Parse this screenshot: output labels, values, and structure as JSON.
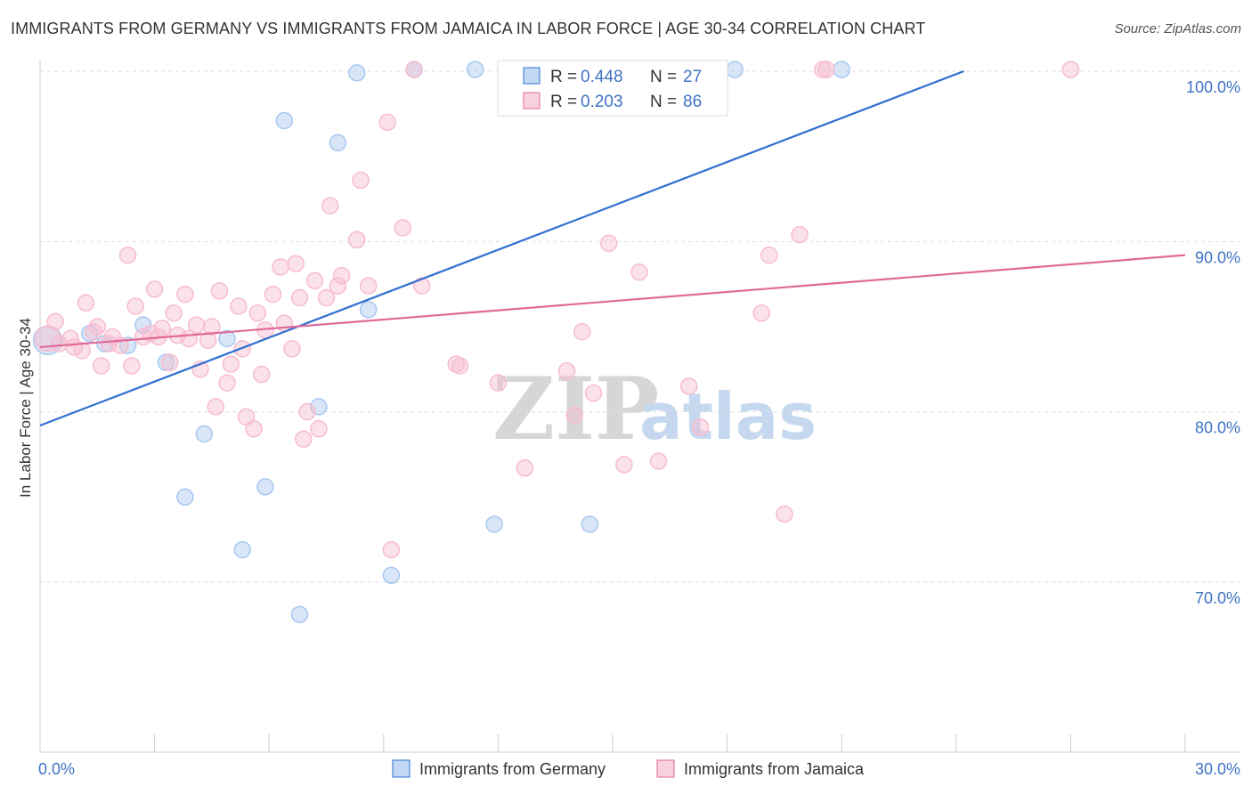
{
  "title": "IMMIGRANTS FROM GERMANY VS IMMIGRANTS FROM JAMAICA IN LABOR FORCE | AGE 30-34 CORRELATION CHART",
  "source": "Source: ZipAtlas.com",
  "watermark": {
    "zip": "ZIP",
    "atlas": "atlas"
  },
  "chart_data": {
    "type": "scatter",
    "title": "IMMIGRANTS FROM GERMANY VS IMMIGRANTS FROM JAMAICA IN LABOR FORCE | AGE 30-34 CORRELATION CHART",
    "xlabel": "",
    "ylabel": "In Labor Force | Age 30-34",
    "xlim": [
      0,
      30
    ],
    "ylim": [
      60,
      101
    ],
    "x_tick_labels": [
      "0.0%",
      "30.0%"
    ],
    "y_ticks": [
      70,
      80,
      90,
      100
    ],
    "y_tick_labels": [
      "70.0%",
      "80.0%",
      "90.0%",
      "100.0%"
    ],
    "grid": true,
    "legend_position": "top-center",
    "series": [
      {
        "name": "Immigrants from Germany",
        "color": "#a8c8f0",
        "line_color": "#2f6fcf",
        "r_label": "R =",
        "r_value": "0.448",
        "n_label": "N =",
        "n_value": "27",
        "trend": {
          "x": [
            0,
            24.2
          ],
          "y": [
            79.2,
            100.0
          ]
        },
        "points": [
          {
            "x": 0.2,
            "y": 84.2,
            "s": 16
          },
          {
            "x": 1.3,
            "y": 84.6,
            "s": 9
          },
          {
            "x": 1.7,
            "y": 84.0,
            "s": 9
          },
          {
            "x": 2.3,
            "y": 83.9,
            "s": 9
          },
          {
            "x": 2.7,
            "y": 85.1,
            "s": 9
          },
          {
            "x": 3.3,
            "y": 82.9,
            "s": 9
          },
          {
            "x": 3.8,
            "y": 75.0,
            "s": 9
          },
          {
            "x": 4.3,
            "y": 78.7,
            "s": 9
          },
          {
            "x": 4.9,
            "y": 84.3,
            "s": 9
          },
          {
            "x": 5.3,
            "y": 71.9,
            "s": 9
          },
          {
            "x": 5.9,
            "y": 75.6,
            "s": 9
          },
          {
            "x": 6.4,
            "y": 97.1,
            "s": 9
          },
          {
            "x": 6.8,
            "y": 68.1,
            "s": 9
          },
          {
            "x": 7.3,
            "y": 80.3,
            "s": 9
          },
          {
            "x": 7.8,
            "y": 95.8,
            "s": 9
          },
          {
            "x": 8.3,
            "y": 99.9,
            "s": 9
          },
          {
            "x": 8.6,
            "y": 86.0,
            "s": 9
          },
          {
            "x": 9.2,
            "y": 70.4,
            "s": 9
          },
          {
            "x": 9.8,
            "y": 100.1,
            "s": 9
          },
          {
            "x": 11.4,
            "y": 100.1,
            "s": 9
          },
          {
            "x": 11.9,
            "y": 73.4,
            "s": 9
          },
          {
            "x": 14.4,
            "y": 73.4,
            "s": 9
          },
          {
            "x": 15.8,
            "y": 100.1,
            "s": 9
          },
          {
            "x": 16.4,
            "y": 100.1,
            "s": 9
          },
          {
            "x": 18.2,
            "y": 100.1,
            "s": 9
          },
          {
            "x": 21.0,
            "y": 100.1,
            "s": 9
          }
        ]
      },
      {
        "name": "Immigrants from Jamaica",
        "color": "#f7bcd0",
        "line_color": "#e0699a",
        "r_label": "R =",
        "r_value": "0.203",
        "n_label": "N =",
        "n_value": "86",
        "trend": {
          "x": [
            0,
            30
          ],
          "y": [
            83.8,
            89.2
          ]
        },
        "points": [
          {
            "x": 0.2,
            "y": 84.3,
            "s": 14
          },
          {
            "x": 0.4,
            "y": 85.3,
            "s": 9
          },
          {
            "x": 0.5,
            "y": 84.0,
            "s": 9
          },
          {
            "x": 0.8,
            "y": 84.3,
            "s": 9
          },
          {
            "x": 0.9,
            "y": 83.8,
            "s": 9
          },
          {
            "x": 1.1,
            "y": 83.6,
            "s": 9
          },
          {
            "x": 1.2,
            "y": 86.4,
            "s": 9
          },
          {
            "x": 1.4,
            "y": 84.7,
            "s": 9
          },
          {
            "x": 1.5,
            "y": 85.0,
            "s": 9
          },
          {
            "x": 1.6,
            "y": 82.7,
            "s": 9
          },
          {
            "x": 1.8,
            "y": 84.0,
            "s": 9
          },
          {
            "x": 1.9,
            "y": 84.4,
            "s": 9
          },
          {
            "x": 2.1,
            "y": 83.9,
            "s": 9
          },
          {
            "x": 2.3,
            "y": 89.2,
            "s": 9
          },
          {
            "x": 2.4,
            "y": 82.7,
            "s": 9
          },
          {
            "x": 2.5,
            "y": 86.2,
            "s": 9
          },
          {
            "x": 2.7,
            "y": 84.4,
            "s": 9
          },
          {
            "x": 2.9,
            "y": 84.6,
            "s": 9
          },
          {
            "x": 3.0,
            "y": 87.2,
            "s": 9
          },
          {
            "x": 3.1,
            "y": 84.4,
            "s": 9
          },
          {
            "x": 3.2,
            "y": 84.9,
            "s": 9
          },
          {
            "x": 3.4,
            "y": 82.9,
            "s": 9
          },
          {
            "x": 3.5,
            "y": 85.8,
            "s": 9
          },
          {
            "x": 3.6,
            "y": 84.5,
            "s": 9
          },
          {
            "x": 3.8,
            "y": 86.9,
            "s": 9
          },
          {
            "x": 3.9,
            "y": 84.3,
            "s": 9
          },
          {
            "x": 4.1,
            "y": 85.1,
            "s": 9
          },
          {
            "x": 4.2,
            "y": 82.5,
            "s": 9
          },
          {
            "x": 4.4,
            "y": 84.2,
            "s": 9
          },
          {
            "x": 4.5,
            "y": 85.0,
            "s": 9
          },
          {
            "x": 4.6,
            "y": 80.3,
            "s": 9
          },
          {
            "x": 4.7,
            "y": 87.1,
            "s": 9
          },
          {
            "x": 4.9,
            "y": 81.7,
            "s": 9
          },
          {
            "x": 5.0,
            "y": 82.8,
            "s": 9
          },
          {
            "x": 5.2,
            "y": 86.2,
            "s": 9
          },
          {
            "x": 5.3,
            "y": 83.7,
            "s": 9
          },
          {
            "x": 5.4,
            "y": 79.7,
            "s": 9
          },
          {
            "x": 5.6,
            "y": 79.0,
            "s": 9
          },
          {
            "x": 5.7,
            "y": 85.8,
            "s": 9
          },
          {
            "x": 5.8,
            "y": 82.2,
            "s": 9
          },
          {
            "x": 5.9,
            "y": 84.8,
            "s": 9
          },
          {
            "x": 6.1,
            "y": 86.9,
            "s": 9
          },
          {
            "x": 6.3,
            "y": 88.5,
            "s": 9
          },
          {
            "x": 6.4,
            "y": 85.2,
            "s": 9
          },
          {
            "x": 6.6,
            "y": 83.7,
            "s": 9
          },
          {
            "x": 6.7,
            "y": 88.7,
            "s": 9
          },
          {
            "x": 6.8,
            "y": 86.7,
            "s": 9
          },
          {
            "x": 6.9,
            "y": 78.4,
            "s": 9
          },
          {
            "x": 7.0,
            "y": 80.0,
            "s": 9
          },
          {
            "x": 7.2,
            "y": 87.7,
            "s": 9
          },
          {
            "x": 7.3,
            "y": 79.0,
            "s": 9
          },
          {
            "x": 7.5,
            "y": 86.7,
            "s": 9
          },
          {
            "x": 7.6,
            "y": 92.1,
            "s": 9
          },
          {
            "x": 7.8,
            "y": 87.4,
            "s": 9
          },
          {
            "x": 7.9,
            "y": 88.0,
            "s": 9
          },
          {
            "x": 8.3,
            "y": 90.1,
            "s": 9
          },
          {
            "x": 8.4,
            "y": 93.6,
            "s": 9
          },
          {
            "x": 8.6,
            "y": 87.4,
            "s": 9
          },
          {
            "x": 9.1,
            "y": 97.0,
            "s": 9
          },
          {
            "x": 9.2,
            "y": 71.9,
            "s": 9
          },
          {
            "x": 9.5,
            "y": 90.8,
            "s": 9
          },
          {
            "x": 9.8,
            "y": 100.1,
            "s": 9
          },
          {
            "x": 10.0,
            "y": 87.4,
            "s": 9
          },
          {
            "x": 10.9,
            "y": 82.8,
            "s": 9
          },
          {
            "x": 11.0,
            "y": 82.7,
            "s": 9
          },
          {
            "x": 12.0,
            "y": 81.7,
            "s": 9
          },
          {
            "x": 12.7,
            "y": 76.7,
            "s": 9
          },
          {
            "x": 13.8,
            "y": 82.4,
            "s": 9
          },
          {
            "x": 14.0,
            "y": 79.8,
            "s": 9
          },
          {
            "x": 14.2,
            "y": 84.7,
            "s": 9
          },
          {
            "x": 14.5,
            "y": 81.1,
            "s": 9
          },
          {
            "x": 14.9,
            "y": 89.9,
            "s": 9
          },
          {
            "x": 15.3,
            "y": 76.9,
            "s": 9
          },
          {
            "x": 15.7,
            "y": 88.2,
            "s": 9
          },
          {
            "x": 16.2,
            "y": 77.1,
            "s": 9
          },
          {
            "x": 17.0,
            "y": 81.5,
            "s": 9
          },
          {
            "x": 17.3,
            "y": 79.1,
            "s": 9
          },
          {
            "x": 18.9,
            "y": 85.8,
            "s": 9
          },
          {
            "x": 19.1,
            "y": 89.2,
            "s": 9
          },
          {
            "x": 19.5,
            "y": 74.0,
            "s": 9
          },
          {
            "x": 19.9,
            "y": 90.4,
            "s": 9
          },
          {
            "x": 20.5,
            "y": 100.1,
            "s": 9
          },
          {
            "x": 20.6,
            "y": 100.1,
            "s": 9
          },
          {
            "x": 27.0,
            "y": 100.1,
            "s": 9
          }
        ]
      }
    ]
  }
}
